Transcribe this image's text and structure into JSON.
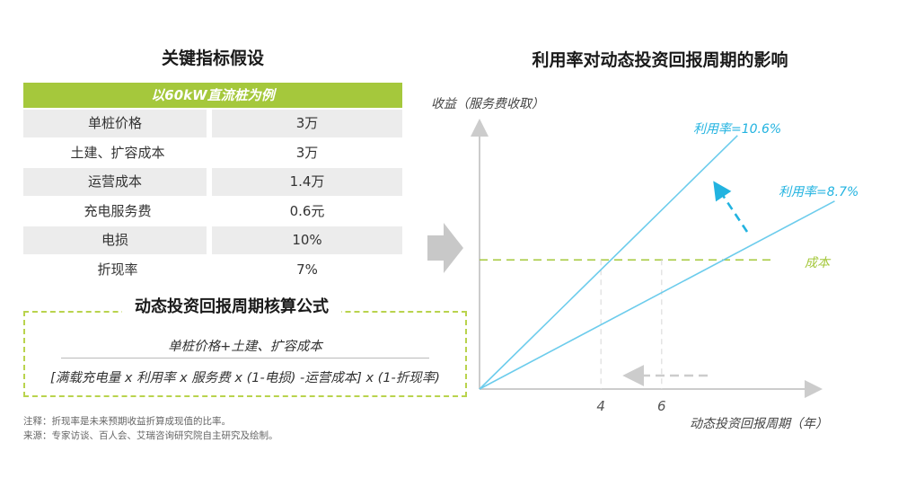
{
  "left": {
    "title": "关键指标假设",
    "table_header": "以60kW直流桩为例",
    "rows": [
      {
        "label": "单桩价格",
        "value": "3万"
      },
      {
        "label": "土建、扩容成本",
        "value": "3万"
      },
      {
        "label": "运营成本",
        "value": "1.4万"
      },
      {
        "label": "充电服务费",
        "value": "0.6元"
      },
      {
        "label": "电损",
        "value": "10%"
      },
      {
        "label": "折现率",
        "value": "7%"
      }
    ],
    "formula": {
      "title": "动态投资回报周期核算公式",
      "numerator": "单桩价格+土建、扩容成本",
      "denominator": "[满载充电量 x 利用率 x 服务费 x (1-电损) -运营成本] x (1-折现率)"
    },
    "notes": [
      "注释：折现率是未来预期收益折算成现值的比率。",
      "来源：专家访谈、百人会、艾瑞咨询研究院自主研究及绘制。"
    ]
  },
  "colors": {
    "accent_green": "#a5c83c",
    "line_blue": "#6cccec",
    "label_blue": "#22b3e0",
    "axis_gray": "#cccccc"
  },
  "chart_data": {
    "type": "line",
    "title": "利用率对动态投资回报周期的影响",
    "ylabel": "收益（服务费收取）",
    "xlabel": "动态投资回报周期（年）",
    "xlim": [
      0,
      11
    ],
    "ylim": [
      0,
      10
    ],
    "x_ticks": [
      4,
      6
    ],
    "series": [
      {
        "name": "利用率=10.6%",
        "points": [
          [
            0,
            0
          ],
          [
            8.5,
            8.5
          ]
        ]
      },
      {
        "name": "利用率=8.7%",
        "points": [
          [
            0,
            0
          ],
          [
            11.7,
            6.3
          ]
        ]
      }
    ],
    "cost_line": {
      "name": "成本",
      "y": 4.33
    },
    "annotations": [
      {
        "type": "arrow",
        "meaning": "utilization increase",
        "from_line": "利用率=8.7%",
        "to_line": "利用率=10.6%"
      },
      {
        "type": "arrow",
        "meaning": "payback period shortens",
        "from_x": 6,
        "to_x": 4
      }
    ]
  }
}
